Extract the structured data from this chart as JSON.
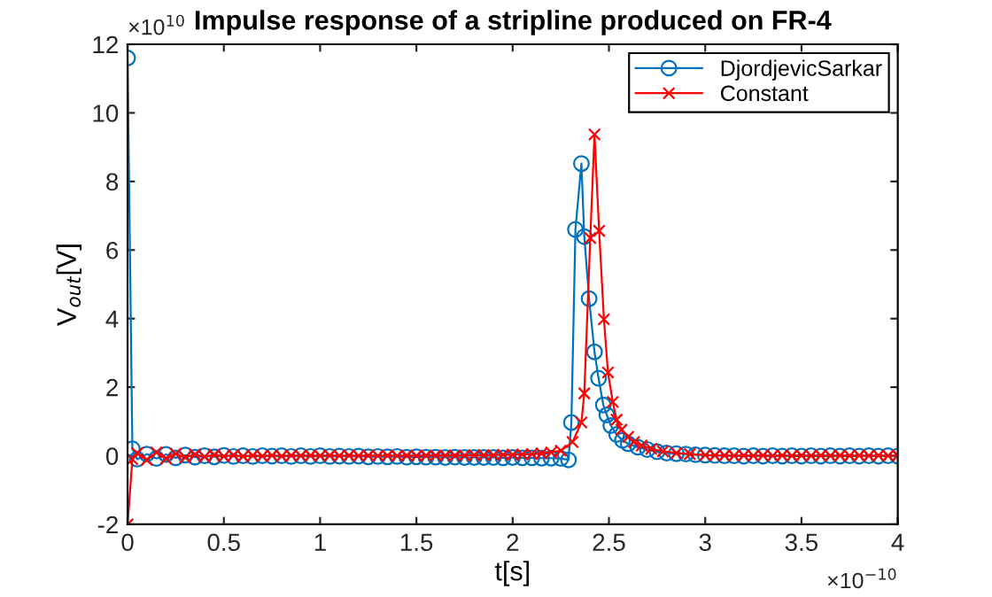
{
  "chart_data": {
    "type": "line",
    "title": "Impulse response of a stripline produced on FR-4",
    "xlabel": "t[s]",
    "ylabel": "V$_{out}$[V]",
    "annotations": [
      "×10$^{10}$",
      "×10$^{−10}$"
    ],
    "xlim": [
      0,
      4
    ],
    "xticks": [
      0,
      0.5,
      1,
      1.5,
      2,
      2.5,
      3,
      3.5,
      4
    ],
    "ylim": [
      -2,
      12
    ],
    "yticks": [
      -2,
      0,
      2,
      4,
      6,
      8,
      10,
      12
    ],
    "grid": false,
    "legend": "top right",
    "series": [
      {
        "name": "DjordjevicSarkar",
        "color": "#0072bd",
        "marker": "circle",
        "x": [
          0,
          0.025,
          0.05,
          0.1,
          0.15,
          0.2,
          0.25,
          0.3,
          0.35,
          0.4,
          0.45,
          0.5,
          0.55,
          0.6,
          0.65,
          0.7,
          0.75,
          0.8,
          0.85,
          0.9,
          0.95,
          1,
          1.05,
          1.1,
          1.15,
          1.2,
          1.25,
          1.3,
          1.35,
          1.4,
          1.45,
          1.5,
          1.55,
          1.6,
          1.65,
          1.7,
          1.75,
          1.8,
          1.85,
          1.9,
          1.95,
          2,
          2.05,
          2.1,
          2.15,
          2.2,
          2.25,
          2.29,
          2.305,
          2.326,
          2.357,
          2.372,
          2.397,
          2.425,
          2.446,
          2.471,
          2.489,
          2.51,
          2.54,
          2.57,
          2.6,
          2.65,
          2.7,
          2.75,
          2.8,
          2.85,
          2.9,
          2.95,
          3,
          3.05,
          3.1,
          3.15,
          3.2,
          3.25,
          3.3,
          3.35,
          3.4,
          3.45,
          3.5,
          3.55,
          3.6,
          3.65,
          3.7,
          3.75,
          3.8,
          3.85,
          3.9,
          3.95,
          4
        ],
        "values": [
          11.6,
          0.2,
          -0.1,
          0.05,
          -0.08,
          0.04,
          -0.06,
          0.02,
          -0.04,
          0.0,
          -0.03,
          0.01,
          -0.02,
          0.0,
          -0.02,
          0.0,
          -0.01,
          0.0,
          -0.02,
          0.0,
          -0.02,
          0.0,
          -0.02,
          -0.01,
          -0.02,
          -0.01,
          -0.03,
          -0.02,
          -0.03,
          -0.02,
          -0.04,
          -0.03,
          -0.04,
          -0.04,
          -0.05,
          -0.04,
          -0.05,
          -0.05,
          -0.05,
          -0.05,
          -0.06,
          -0.05,
          -0.06,
          -0.06,
          -0.07,
          -0.07,
          -0.08,
          -0.12,
          0.97,
          6.6,
          8.52,
          6.39,
          4.58,
          3.03,
          2.26,
          1.48,
          1.19,
          0.88,
          0.62,
          0.45,
          0.35,
          0.25,
          0.18,
          0.12,
          0.08,
          0.06,
          0.05,
          0.03,
          0.02,
          0.01,
          0.0,
          0.0,
          -0.01,
          0.0,
          -0.01,
          0.0,
          -0.01,
          0.0,
          -0.01,
          0.0,
          -0.01,
          0.0,
          -0.01,
          0.0,
          -0.01,
          0.0,
          -0.01,
          0.0,
          -0.01
        ]
      },
      {
        "name": "Constant",
        "color": "#ff0000",
        "marker": "cross",
        "x": [
          0,
          0.025,
          0.05,
          0.1,
          0.15,
          0.2,
          0.25,
          0.3,
          0.35,
          0.4,
          0.45,
          0.5,
          0.55,
          0.6,
          0.65,
          0.7,
          0.75,
          0.8,
          0.85,
          0.9,
          0.95,
          1,
          1.05,
          1.1,
          1.15,
          1.2,
          1.25,
          1.3,
          1.35,
          1.4,
          1.45,
          1.5,
          1.55,
          1.6,
          1.65,
          1.7,
          1.75,
          1.8,
          1.85,
          1.9,
          1.95,
          2,
          2.05,
          2.1,
          2.15,
          2.2,
          2.25,
          2.311,
          2.357,
          2.372,
          2.403,
          2.425,
          2.449,
          2.474,
          2.495,
          2.52,
          2.54,
          2.565,
          2.6,
          2.63,
          2.67,
          2.72,
          2.78,
          2.85,
          2.92,
          3,
          3.05,
          3.1,
          3.15,
          3.2,
          3.25,
          3.3,
          3.35,
          3.4,
          3.45,
          3.5,
          3.55,
          3.6,
          3.65,
          3.7,
          3.75,
          3.8,
          3.85,
          3.9,
          3.95,
          4
        ],
        "values": [
          -2,
          -0.1,
          0.08,
          -0.12,
          0.1,
          -0.08,
          0.06,
          -0.05,
          0.04,
          -0.03,
          0.03,
          -0.02,
          0.02,
          -0.02,
          0.01,
          -0.01,
          0.01,
          -0.01,
          0.01,
          0.0,
          0.01,
          0.0,
          0.01,
          0.0,
          0.01,
          0.0,
          0.01,
          0.0,
          0.01,
          0.0,
          0.01,
          0.0,
          0.01,
          0.01,
          0.01,
          0.01,
          0.01,
          0.02,
          0.02,
          0.02,
          0.03,
          0.03,
          0.04,
          0.05,
          0.07,
          0.1,
          0.15,
          0.4,
          0.97,
          1.82,
          6.35,
          9.37,
          6.56,
          3.98,
          2.43,
          1.57,
          1.05,
          0.76,
          0.55,
          0.4,
          0.3,
          0.2,
          0.13,
          0.08,
          0.05,
          0.02,
          0.01,
          0.01,
          0.0,
          0.01,
          0.0,
          0.01,
          0.0,
          0.01,
          0.0,
          0.01,
          0.0,
          0.01,
          0.0,
          0.01,
          0.0,
          0.01,
          0.0,
          0.01,
          0.0,
          0.01
        ]
      }
    ]
  }
}
